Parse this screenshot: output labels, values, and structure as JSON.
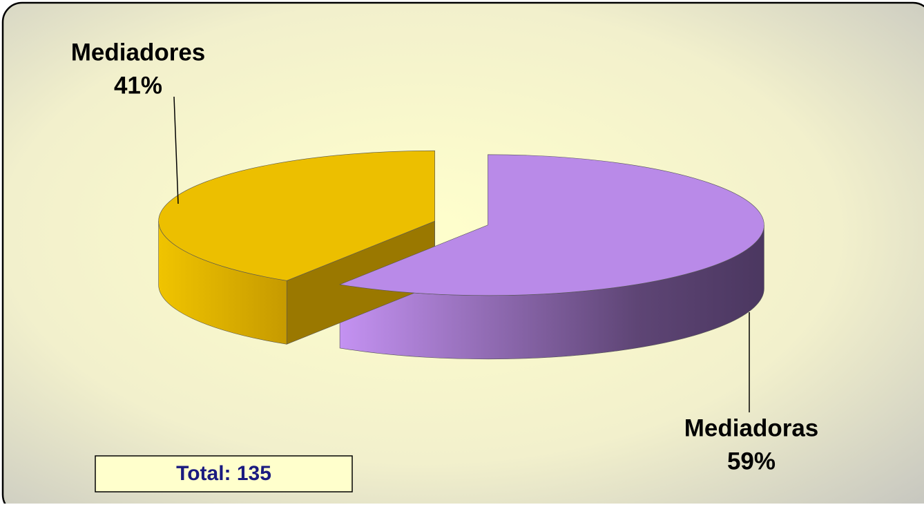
{
  "chart_data": {
    "type": "pie",
    "categories": [
      "Mediadores",
      "Mediadoras"
    ],
    "values": [
      41,
      59
    ],
    "value_labels": [
      "41%",
      "59%"
    ],
    "colors": [
      "#ecbf00",
      "#b98ae8"
    ],
    "annotation": "Total: 135"
  }
}
